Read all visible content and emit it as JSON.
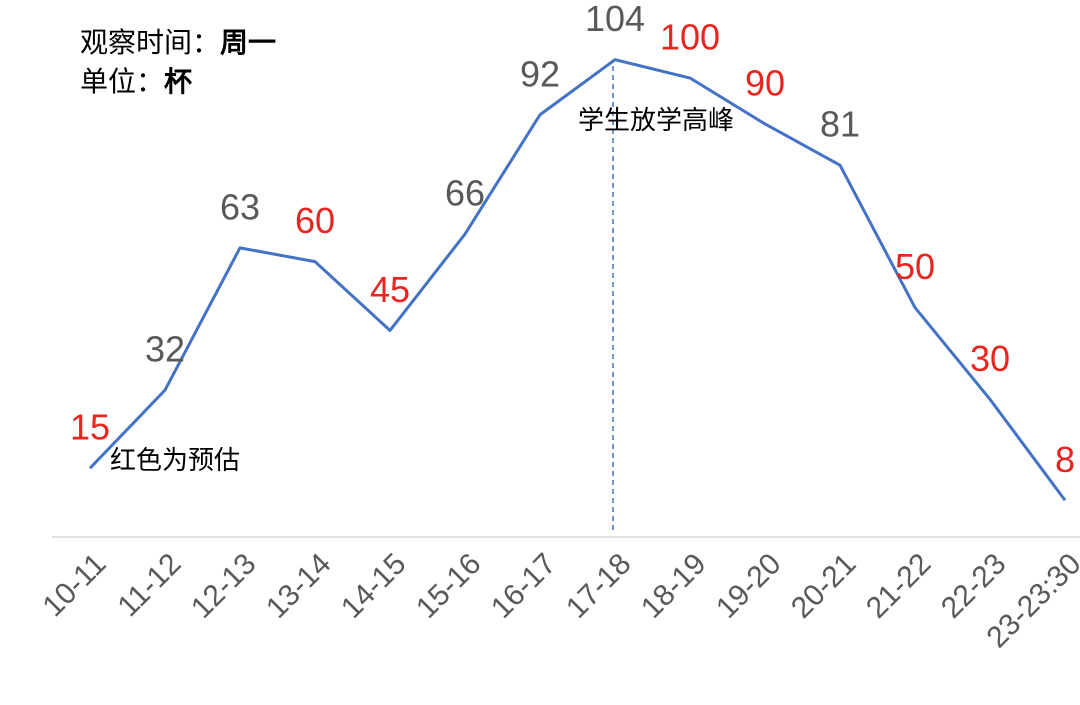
{
  "chart_data": {
    "type": "line",
    "observe_label": "观察时间：",
    "observe_value": "周一",
    "unit_label": "单位：",
    "unit_value": "杯",
    "annotation_peak": "学生放学高峰",
    "annotation_estimate": "红色为预估",
    "categories": [
      "10-11",
      "11-12",
      "12-13",
      "13-14",
      "14-15",
      "15-16",
      "16-17",
      "17-18",
      "18-19",
      "19-20",
      "20-21",
      "21-22",
      "22-23",
      "23-23:30"
    ],
    "values": [
      15,
      32,
      63,
      60,
      45,
      66,
      92,
      104,
      100,
      90,
      81,
      50,
      30,
      8
    ],
    "value_label_colors": [
      "#e8251f",
      "#595959",
      "#595959",
      "#e8251f",
      "#e8251f",
      "#595959",
      "#595959",
      "#595959",
      "#e8251f",
      "#e8251f",
      "#595959",
      "#e8251f",
      "#e8251f",
      "#e8251f"
    ],
    "color": "#4472c4",
    "ylim": [
      0,
      117
    ]
  }
}
